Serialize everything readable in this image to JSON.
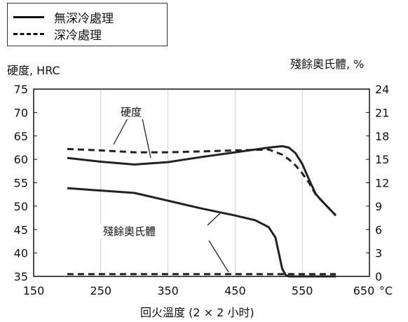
{
  "chart_data": {
    "type": "line",
    "legend": {
      "position": "top-left",
      "entries": [
        {
          "label": "無深冷處理",
          "style": "solid"
        },
        {
          "label": "深冷處理",
          "style": "dashed"
        }
      ]
    },
    "xlabel": "回火溫度 (2 × 2 小时)",
    "xunit": "°C",
    "xlim": [
      150,
      650
    ],
    "xticks": [
      150,
      250,
      350,
      450,
      550,
      650
    ],
    "xtick_labels": [
      "150",
      "250",
      "350",
      "450",
      "550",
      "650"
    ],
    "ylabel_left": "硬度, HRC",
    "ylim_left": [
      35,
      75
    ],
    "yticks_left": [
      "75",
      "70",
      "65",
      "60",
      "55",
      "50",
      "45",
      "40",
      "35"
    ],
    "ylabel_right": "殘餘奧氏體, %",
    "ylim_right": [
      0,
      24
    ],
    "yticks_right": [
      "24",
      "21",
      "18",
      "15",
      "12",
      "9",
      "6",
      "3",
      "0"
    ],
    "grid": "vertical",
    "annotations": [
      {
        "text": "硬度"
      },
      {
        "text": "殘餘奧氏體"
      }
    ],
    "series": [
      {
        "style": "solid",
        "axis": "left",
        "x": [
          200,
          250,
          300,
          350,
          400,
          450,
          500,
          520,
          530,
          540,
          550,
          560,
          570,
          580,
          600
        ],
        "y": [
          60.3,
          59.5,
          58.9,
          59.4,
          60.5,
          61.5,
          62.5,
          62.8,
          62.5,
          61.3,
          59.0,
          55.7,
          52.6,
          51.0,
          48.0
        ]
      },
      {
        "style": "dashed",
        "axis": "left",
        "x": [
          200,
          250,
          300,
          350,
          400,
          450,
          500,
          520,
          530,
          540,
          550,
          560,
          570,
          580,
          600
        ],
        "y": [
          62.2,
          61.9,
          61.5,
          61.5,
          61.7,
          61.9,
          62.1,
          61.0,
          60.0,
          58.7,
          57.0,
          55.0,
          52.5,
          51.0,
          48.0
        ]
      },
      {
        "style": "solid",
        "axis": "right",
        "x": [
          200,
          250,
          300,
          350,
          400,
          450,
          480,
          500,
          510,
          515,
          520,
          525,
          530,
          540,
          550,
          575,
          600
        ],
        "y": [
          11.3,
          11.0,
          10.7,
          9.7,
          8.7,
          7.8,
          7.2,
          6.3,
          5.0,
          3.0,
          1.0,
          0.2,
          0,
          0,
          0,
          0,
          0
        ]
      },
      {
        "style": "dashed",
        "axis": "right",
        "x": [
          200,
          250,
          300,
          350,
          400,
          450,
          500,
          550,
          600
        ],
        "y": [
          0.3,
          0.3,
          0.3,
          0.3,
          0.3,
          0.3,
          0.3,
          0.3,
          0.3
        ]
      }
    ]
  }
}
